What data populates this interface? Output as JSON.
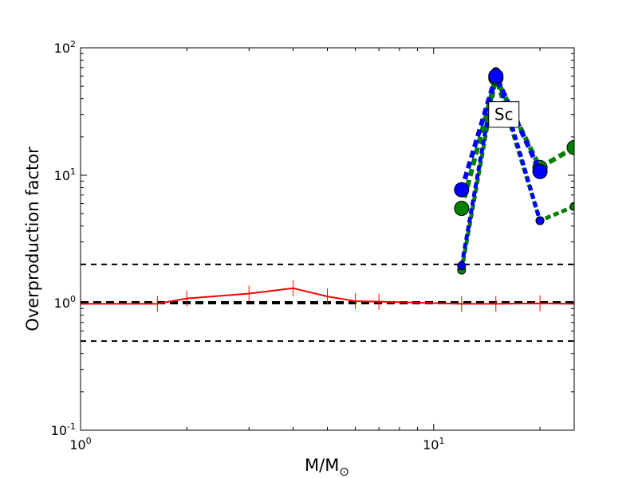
{
  "chart_data": {
    "type": "line",
    "title": "",
    "xlabel": {
      "main": "M/M",
      "subscript": "⊙"
    },
    "ylabel": "Overproduction factor",
    "xscale": "log",
    "yscale": "log",
    "xlim": [
      1,
      25
    ],
    "ylim": [
      0.1,
      100
    ],
    "grid": false,
    "x_ticks": [
      {
        "value": 1,
        "base": "10",
        "exp": "0"
      },
      {
        "value": 10,
        "base": "10",
        "exp": "1"
      }
    ],
    "y_ticks": [
      {
        "value": 0.1,
        "base": "10",
        "exp": "-1"
      },
      {
        "value": 1,
        "base": "10",
        "exp": "0"
      },
      {
        "value": 10,
        "base": "10",
        "exp": "1"
      },
      {
        "value": 100,
        "base": "10",
        "exp": "2"
      }
    ],
    "reference_lines": [
      {
        "y": 2.0,
        "style": "dashed",
        "color": "#000000",
        "width": "thin"
      },
      {
        "y": 1.0,
        "style": "dashed",
        "color": "#000000",
        "width": "thick"
      },
      {
        "y": 0.5,
        "style": "dashed",
        "color": "#000000",
        "width": "thin"
      }
    ],
    "series": [
      {
        "color": "#ff0000",
        "style": "solid",
        "marker": "vline",
        "x": [
          1.0,
          1.65,
          2.0,
          3.0,
          4.0,
          5.0,
          6.0,
          7.0,
          12.0,
          15.0,
          20.0,
          25.0
        ],
        "y": [
          0.98,
          0.98,
          1.08,
          1.18,
          1.3,
          1.12,
          1.03,
          1.02,
          0.98,
          0.98,
          0.99,
          0.98
        ]
      },
      {
        "color": "#008000",
        "style": "dotted",
        "marker": "circle",
        "x": [
          12,
          15,
          20,
          25
        ],
        "y": [
          1.8,
          58,
          4.4,
          5.7
        ]
      },
      {
        "color": "#0000ff",
        "style": "dotted",
        "marker": "circle",
        "x": [
          12,
          15,
          20
        ],
        "y": [
          1.95,
          65,
          4.4
        ]
      },
      {
        "color": "#008000",
        "style": "dotted",
        "marker": "circle-large",
        "x": [
          12,
          15,
          20,
          25
        ],
        "y": [
          5.5,
          58,
          11.5,
          16.5
        ]
      },
      {
        "color": "#0000ff",
        "style": "dotted",
        "marker": "circle-large",
        "x": [
          12,
          15,
          20
        ],
        "y": [
          7.7,
          60,
          10.7
        ]
      }
    ],
    "annotations": [
      {
        "text": "Sc",
        "x": 15.8,
        "y": 30
      }
    ]
  }
}
